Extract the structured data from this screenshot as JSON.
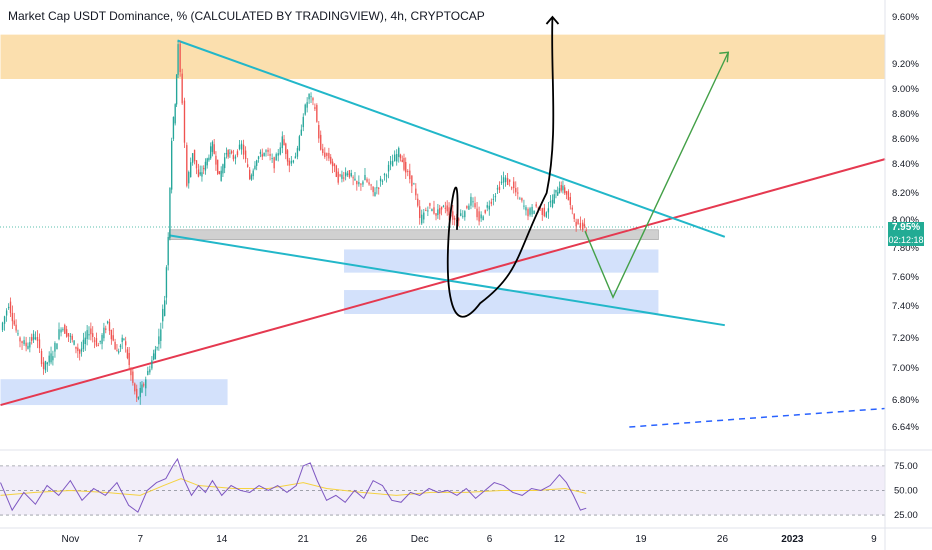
{
  "title": "Market Cap USDT Dominance, % (CALCULATED BY TRADINGVIEW), 4h, CRYPTOCAP",
  "colors": {
    "up": "#26a69a",
    "down": "#ef5350",
    "trend_red": "#e53950",
    "channel_cyan": "#22b7c9",
    "forecast_green": "#43a047",
    "resistance_zone": "#fbdfae",
    "support_zone": "#d3e1fb",
    "current_zone": "#c8c8c8",
    "rsi_line": "#7e57c2",
    "rsi_ma": "#f5d240",
    "badge": "#22ab94"
  },
  "chart_data": [
    {
      "type": "candlestick",
      "title": "Market Cap USDT Dominance, % (CALCULATED BY TRADINGVIEW), 4h, CRYPTOCAP",
      "y_ticks": [
        "9.60%",
        "9.20%",
        "9.00%",
        "8.80%",
        "8.60%",
        "8.40%",
        "8.20%",
        "8.00%",
        "7.80%",
        "7.60%",
        "7.40%",
        "7.20%",
        "7.00%",
        "6.80%",
        "6.64%"
      ],
      "y_tick_values": [
        9.6,
        9.2,
        9.0,
        8.8,
        8.6,
        8.4,
        8.2,
        8.0,
        7.8,
        7.6,
        7.4,
        7.2,
        7.0,
        6.8,
        6.64
      ],
      "x_ticks": [
        "Nov",
        "7",
        "14",
        "21",
        "26",
        "Dec",
        "6",
        "12",
        "19",
        "26",
        "2023",
        "9"
      ],
      "x_tick_days": [
        0,
        6,
        13,
        20,
        25,
        30,
        36,
        42,
        49,
        56,
        62,
        69
      ],
      "ylim": [
        6.6,
        9.7
      ],
      "xlim_days": [
        -6,
        70
      ],
      "current_value": "7.95%",
      "countdown": "02:12:18",
      "price_path": [
        [
          -6,
          7.25
        ],
        [
          -5.3,
          7.42
        ],
        [
          -4.5,
          7.2
        ],
        [
          -3.8,
          7.15
        ],
        [
          -3,
          7.22
        ],
        [
          -2.3,
          7.0
        ],
        [
          -1.5,
          7.1
        ],
        [
          -0.8,
          7.28
        ],
        [
          0,
          7.2
        ],
        [
          0.8,
          7.1
        ],
        [
          1.6,
          7.25
        ],
        [
          2.4,
          7.15
        ],
        [
          3.2,
          7.3
        ],
        [
          4.0,
          7.1
        ],
        [
          4.6,
          7.2
        ],
        [
          5.2,
          6.95
        ],
        [
          5.7,
          6.8
        ],
        [
          6.3,
          6.9
        ],
        [
          7.0,
          7.05
        ],
        [
          7.6,
          7.2
        ],
        [
          8.1,
          7.45
        ],
        [
          8.4,
          7.9
        ],
        [
          8.7,
          8.6
        ],
        [
          9.0,
          8.9
        ],
        [
          9.25,
          9.35
        ],
        [
          9.6,
          8.9
        ],
        [
          10.0,
          8.25
        ],
        [
          10.5,
          8.5
        ],
        [
          11.0,
          8.3
        ],
        [
          11.6,
          8.4
        ],
        [
          12.2,
          8.55
        ],
        [
          12.8,
          8.3
        ],
        [
          13.4,
          8.5
        ],
        [
          14.0,
          8.45
        ],
        [
          14.7,
          8.55
        ],
        [
          15.4,
          8.3
        ],
        [
          16.0,
          8.45
        ],
        [
          16.8,
          8.5
        ],
        [
          17.5,
          8.4
        ],
        [
          18.2,
          8.6
        ],
        [
          18.8,
          8.4
        ],
        [
          19.5,
          8.5
        ],
        [
          20.0,
          8.8
        ],
        [
          20.5,
          8.95
        ],
        [
          21.0,
          8.85
        ],
        [
          21.5,
          8.5
        ],
        [
          22.2,
          8.45
        ],
        [
          23.0,
          8.3
        ],
        [
          23.8,
          8.35
        ],
        [
          24.6,
          8.25
        ],
        [
          25.3,
          8.3
        ],
        [
          26.0,
          8.2
        ],
        [
          26.8,
          8.3
        ],
        [
          27.5,
          8.4
        ],
        [
          28.2,
          8.5
        ],
        [
          28.8,
          8.35
        ],
        [
          29.5,
          8.25
        ],
        [
          30.0,
          8.0
        ],
        [
          30.7,
          8.1
        ],
        [
          31.4,
          8.05
        ],
        [
          32.2,
          8.1
        ],
        [
          33.0,
          8.0
        ],
        [
          33.7,
          8.05
        ],
        [
          34.4,
          8.15
        ],
        [
          35.1,
          8.0
        ],
        [
          35.8,
          8.1
        ],
        [
          36.5,
          8.2
        ],
        [
          37.2,
          8.3
        ],
        [
          37.9,
          8.25
        ],
        [
          38.6,
          8.15
        ],
        [
          39.3,
          8.05
        ],
        [
          40.0,
          8.1
        ],
        [
          40.7,
          8.05
        ],
        [
          41.4,
          8.15
        ],
        [
          42.0,
          8.25
        ],
        [
          42.6,
          8.2
        ],
        [
          43.1,
          8.05
        ],
        [
          43.6,
          7.95
        ],
        [
          44.0,
          7.96
        ],
        [
          44.3,
          7.95
        ]
      ],
      "rsi": {
        "levels": [
          75,
          50,
          25
        ],
        "tick_labels": [
          "75.00",
          "50.00",
          "25.00"
        ],
        "ylim": [
          20,
          85
        ],
        "values": [
          [
            -6,
            58
          ],
          [
            -5,
            30
          ],
          [
            -4,
            48
          ],
          [
            -3,
            36
          ],
          [
            -2,
            55
          ],
          [
            -1,
            45
          ],
          [
            0,
            60
          ],
          [
            1,
            40
          ],
          [
            2,
            52
          ],
          [
            3,
            45
          ],
          [
            4,
            58
          ],
          [
            5,
            35
          ],
          [
            5.8,
            28
          ],
          [
            6.6,
            50
          ],
          [
            7.4,
            58
          ],
          [
            8.2,
            62
          ],
          [
            8.8,
            75
          ],
          [
            9.2,
            82
          ],
          [
            9.8,
            60
          ],
          [
            10.4,
            45
          ],
          [
            11,
            55
          ],
          [
            11.6,
            48
          ],
          [
            12.2,
            60
          ],
          [
            13,
            45
          ],
          [
            13.8,
            55
          ],
          [
            14.6,
            50
          ],
          [
            15.4,
            48
          ],
          [
            16.2,
            55
          ],
          [
            17,
            50
          ],
          [
            17.8,
            55
          ],
          [
            18.6,
            48
          ],
          [
            19.4,
            55
          ],
          [
            20.0,
            75
          ],
          [
            20.6,
            78
          ],
          [
            21.2,
            60
          ],
          [
            22,
            40
          ],
          [
            22.8,
            45
          ],
          [
            23.6,
            38
          ],
          [
            24.4,
            50
          ],
          [
            25.2,
            42
          ],
          [
            26,
            60
          ],
          [
            26.8,
            55
          ],
          [
            27.6,
            40
          ],
          [
            28.4,
            38
          ],
          [
            29.2,
            48
          ],
          [
            30,
            45
          ],
          [
            30.8,
            52
          ],
          [
            31.6,
            48
          ],
          [
            32.4,
            50
          ],
          [
            33.2,
            45
          ],
          [
            34,
            52
          ],
          [
            34.8,
            42
          ],
          [
            35.6,
            50
          ],
          [
            36.4,
            58
          ],
          [
            37.2,
            55
          ],
          [
            38,
            48
          ],
          [
            38.8,
            45
          ],
          [
            39.6,
            52
          ],
          [
            40.4,
            50
          ],
          [
            41.2,
            55
          ],
          [
            42,
            66
          ],
          [
            42.6,
            58
          ],
          [
            43.2,
            45
          ],
          [
            43.8,
            30
          ],
          [
            44.3,
            32
          ]
        ],
        "ma": [
          [
            -6,
            45
          ],
          [
            -3,
            48
          ],
          [
            0,
            50
          ],
          [
            3,
            48
          ],
          [
            6,
            45
          ],
          [
            8,
            55
          ],
          [
            9.5,
            62
          ],
          [
            11,
            55
          ],
          [
            14,
            52
          ],
          [
            17,
            52
          ],
          [
            20,
            58
          ],
          [
            22,
            52
          ],
          [
            25,
            48
          ],
          [
            28,
            45
          ],
          [
            31,
            48
          ],
          [
            34,
            48
          ],
          [
            37,
            50
          ],
          [
            40,
            50
          ],
          [
            42.5,
            52
          ],
          [
            44.3,
            47
          ]
        ]
      },
      "annotations": {
        "resistance_zone": [
          -6,
          70,
          9.08,
          9.45
        ],
        "support_zones": [
          [
            -6,
            13.5,
            6.77,
            6.93
          ],
          [
            23.5,
            50.5,
            7.63,
            7.79
          ],
          [
            23.5,
            50.5,
            7.35,
            7.51
          ]
        ],
        "current_zone": [
          8.5,
          50.5,
          7.86,
          7.93
        ],
        "red_trendline": [
          [
            -6,
            6.77
          ],
          [
            70,
            8.44
          ]
        ],
        "dashed_trendline": [
          [
            48,
            6.64
          ],
          [
            70,
            6.75
          ]
        ],
        "channel_upper": [
          [
            9.2,
            9.4
          ],
          [
            56.2,
            7.88
          ]
        ],
        "channel_lower": [
          [
            8.5,
            7.89
          ],
          [
            56.2,
            7.28
          ]
        ],
        "green_arrow": [
          [
            44.2,
            7.92
          ],
          [
            46.6,
            7.46
          ],
          [
            56.5,
            9.3
          ],
          [
            58.9,
            9.31
          ]
        ],
        "black_curve": [
          [
            33.2,
            7.93
          ],
          [
            35.2,
            7.42
          ],
          [
            38.3,
            7.7
          ],
          [
            40.9,
            8.2
          ],
          [
            41.4,
            9.6
          ]
        ]
      }
    }
  ]
}
